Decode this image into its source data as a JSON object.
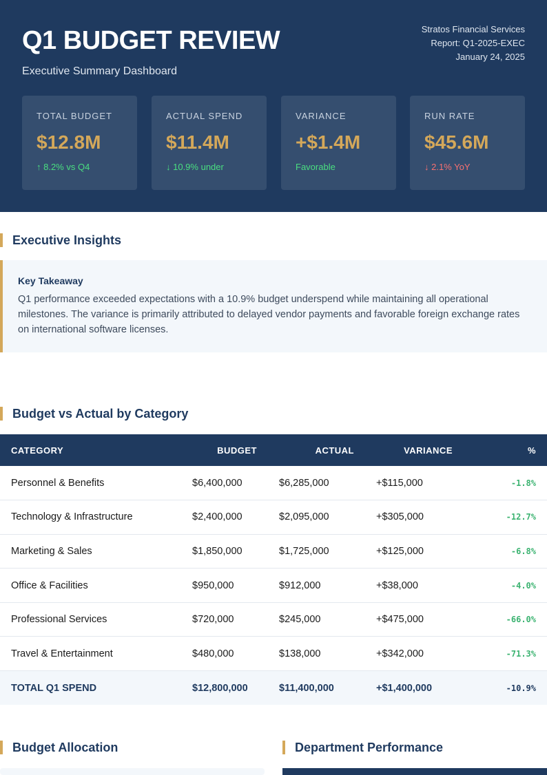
{
  "header": {
    "title": "Q1 BUDGET REVIEW",
    "subtitle": "Executive Summary Dashboard",
    "company": "Stratos Financial Services",
    "report": "Report: Q1-2025-EXEC",
    "date": "January 24, 2025"
  },
  "kpis": [
    {
      "label": "TOTAL BUDGET",
      "value": "$12.8M",
      "note": "↑ 8.2% vs Q4"
    },
    {
      "label": "ACTUAL SPEND",
      "value": "$11.4M",
      "note": "↓ 10.9% under"
    },
    {
      "label": "VARIANCE",
      "value": "+$1.4M",
      "note": "Favorable"
    },
    {
      "label": "RUN RATE",
      "value": "$45.6M",
      "note": "↓ 2.1% YoY"
    }
  ],
  "insights": {
    "heading": "Executive Insights",
    "takeaway_title": "Key Takeaway",
    "text": "Q1 performance exceeded expectations with a 10.9% budget underspend while maintaining all operational milestones. The variance is primarily attributed to delayed vendor payments and favorable foreign exchange rates on international software licenses."
  },
  "table": {
    "heading": "Budget vs Actual by Category",
    "columns": [
      "CATEGORY",
      "BUDGET",
      "ACTUAL",
      "VARIANCE",
      "%"
    ],
    "rows": [
      [
        "Personnel & Benefits",
        "$6,400,000",
        "$6,285,000",
        "+$115,000",
        "-1.8%"
      ],
      [
        "Technology & Infrastructure",
        "$2,400,000",
        "$2,095,000",
        "+$305,000",
        "-12.7%"
      ],
      [
        "Marketing & Sales",
        "$1,850,000",
        "$1,725,000",
        "+$125,000",
        "-6.8%"
      ],
      [
        "Office & Facilities",
        "$950,000",
        "$912,000",
        "+$38,000",
        "-4.0%"
      ],
      [
        "Professional Services",
        "$720,000",
        "$245,000",
        "+$475,000",
        "-66.0%"
      ],
      [
        "Travel & Entertainment",
        "$480,000",
        "$138,000",
        "+$342,000",
        "-71.3%"
      ]
    ],
    "total": [
      "TOTAL Q1 SPEND",
      "$12,800,000",
      "$11,400,000",
      "+$1,400,000",
      "-10.9%"
    ]
  },
  "sections": {
    "allocation": "Budget Allocation",
    "department": "Department Performance"
  }
}
